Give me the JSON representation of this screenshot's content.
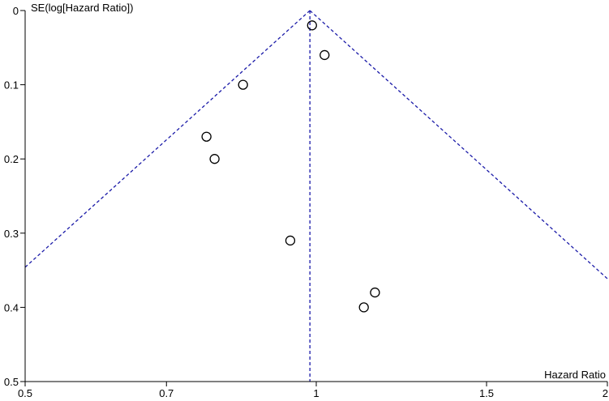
{
  "chart_data": {
    "type": "scatter",
    "title": "",
    "xlabel": "Hazard Ratio",
    "ylabel": "SE(log[Hazard Ratio])",
    "x_scale": "log",
    "y_axis_inverted": true,
    "xlim": [
      0.5,
      2
    ],
    "ylim": [
      0,
      0.5
    ],
    "x_ticks": [
      {
        "value": 0.5,
        "label": "0.5"
      },
      {
        "value": 0.7,
        "label": "0.7"
      },
      {
        "value": 1,
        "label": "1"
      },
      {
        "value": 1.5,
        "label": "1.5"
      },
      {
        "value": 2,
        "label": "2"
      }
    ],
    "y_ticks": [
      {
        "value": 0,
        "label": "0"
      },
      {
        "value": 0.1,
        "label": "0.1"
      },
      {
        "value": 0.2,
        "label": "0.2"
      },
      {
        "value": 0.3,
        "label": "0.3"
      },
      {
        "value": 0.4,
        "label": "0.4"
      },
      {
        "value": 0.5,
        "label": "0.5"
      }
    ],
    "points": [
      {
        "x": 0.99,
        "y": 0.02
      },
      {
        "x": 1.02,
        "y": 0.06
      },
      {
        "x": 0.84,
        "y": 0.1
      },
      {
        "x": 0.77,
        "y": 0.17
      },
      {
        "x": 0.785,
        "y": 0.2
      },
      {
        "x": 0.94,
        "y": 0.31
      },
      {
        "x": 1.15,
        "y": 0.38
      },
      {
        "x": 1.12,
        "y": 0.4
      }
    ],
    "pooled_estimate": 0.985,
    "grid": false,
    "legend": "none",
    "marker_color": "#000000",
    "funnel_line_color": "#1a1aa8"
  }
}
